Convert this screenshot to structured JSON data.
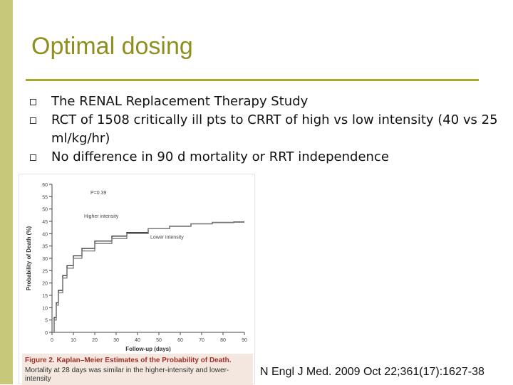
{
  "slide": {
    "title": "Optimal dosing",
    "bullets": [
      "The RENAL Replacement Therapy Study",
      "RCT of 1508 critically ill pts to CRRT of high vs low intensity (40 vs 25 ml/kg/hr)",
      "No difference in 90 d mortality or RRT independence"
    ],
    "citation": "N Engl J Med. 2009 Oct 22;361(17):1627-38",
    "accent_color": "#8f8f1f"
  },
  "figure": {
    "caption_title": "Figure 2. Kaplan–Meier Estimates of the Probability of Death.",
    "caption_body": "Mortality at 28 days was similar in the higher-intensity and lower-intensity"
  },
  "chart_data": {
    "type": "line",
    "title": "",
    "xlabel": "Follow-up (days)",
    "ylabel": "Probability of Death (%)",
    "xlim": [
      0,
      90
    ],
    "ylim": [
      0,
      60
    ],
    "x_ticks": [
      0,
      10,
      20,
      30,
      40,
      50,
      60,
      70,
      80,
      90
    ],
    "y_ticks": [
      0,
      5,
      10,
      15,
      20,
      25,
      30,
      35,
      40,
      45,
      50,
      55,
      60
    ],
    "annotation": "P=0.39",
    "series": [
      {
        "name": "Higher intensity",
        "color": "#333333",
        "x": [
          0,
          1,
          2,
          3,
          5,
          7,
          10,
          14,
          20,
          28,
          35,
          45,
          55,
          65,
          75,
          85,
          90
        ],
        "y": [
          0,
          6,
          12,
          17,
          23,
          27,
          31,
          34,
          37,
          39,
          40.5,
          42,
          43,
          44,
          44.5,
          44.7,
          44.7
        ]
      },
      {
        "name": "Lower intensity",
        "color": "#777777",
        "x": [
          0,
          1,
          2,
          3,
          5,
          7,
          10,
          14,
          20,
          28,
          35,
          45,
          55,
          65,
          75,
          85,
          90
        ],
        "y": [
          0,
          5,
          11,
          16,
          22,
          26,
          30,
          33,
          36,
          38,
          40,
          42,
          43,
          44,
          44.6,
          44.8,
          44.8
        ]
      }
    ]
  }
}
